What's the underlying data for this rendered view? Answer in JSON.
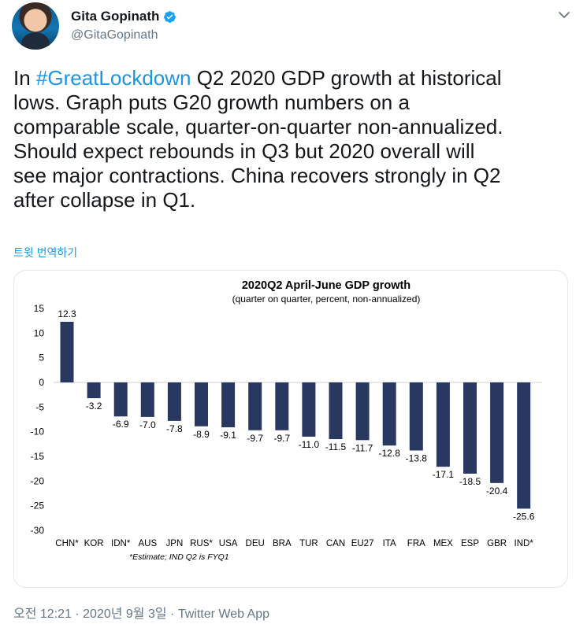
{
  "tweet": {
    "author_name": "Gita Gopinath",
    "author_handle": "@GitaGopinath",
    "hashtag": "#GreatLockdown",
    "text_prefix": "In ",
    "text_rest": " Q2 2020 GDP growth at historical\nlows. Graph puts G20 growth numbers on a\ncomparable scale, quarter-on-quarter non-annualized.\nShould expect rebounds in Q3 but 2020 overall will\nsee major contractions. China recovers strongly in Q2\nafter collapse in Q1.",
    "translate_label": "트윗 번역하기",
    "timestamp": "오전 12:21 · 2020년 9월 3일 · ",
    "source_app": "Twitter Web App",
    "icons": {
      "verified": "verified-badge-icon",
      "menu": "chevron-down-icon"
    },
    "colors": {
      "link": "#1b95e0",
      "verified": "#1da1f2",
      "bar": "#283861"
    }
  },
  "chart_data": {
    "type": "bar",
    "title": "2020Q2 April-June GDP growth",
    "subtitle": "(quarter on quarter, percent, non-annualized)",
    "footnote": "*Estimate; IND Q2 is FYQ1",
    "categories": [
      "CHN*",
      "KOR",
      "IDN*",
      "AUS",
      "JPN",
      "RUS*",
      "USA",
      "DEU",
      "BRA",
      "TUR",
      "CAN",
      "EU27",
      "ITA",
      "FRA",
      "MEX",
      "ESP",
      "GBR",
      "IND*"
    ],
    "values": [
      12.3,
      -3.2,
      -6.9,
      -7.0,
      -7.8,
      -8.9,
      -9.1,
      -9.7,
      -9.7,
      -11.0,
      -11.5,
      -11.7,
      -12.8,
      -13.8,
      -17.1,
      -18.5,
      -20.4,
      -25.6
    ],
    "value_labels": [
      "12.3",
      "-3.2",
      "-6.9",
      "-7.0",
      "-7.8",
      "-8.9",
      "-9.1",
      "-9.7",
      "-9.7",
      "-11.0",
      "-11.5",
      "-11.7",
      "-12.8",
      "-13.8",
      "-17.1",
      "-18.5",
      "-20.4",
      "-25.6"
    ],
    "ylim": [
      -30,
      15
    ],
    "yticks": [
      15,
      10,
      5,
      0,
      -5,
      -10,
      -15,
      -20,
      -25,
      -30
    ],
    "grid": false,
    "legend": "none"
  }
}
